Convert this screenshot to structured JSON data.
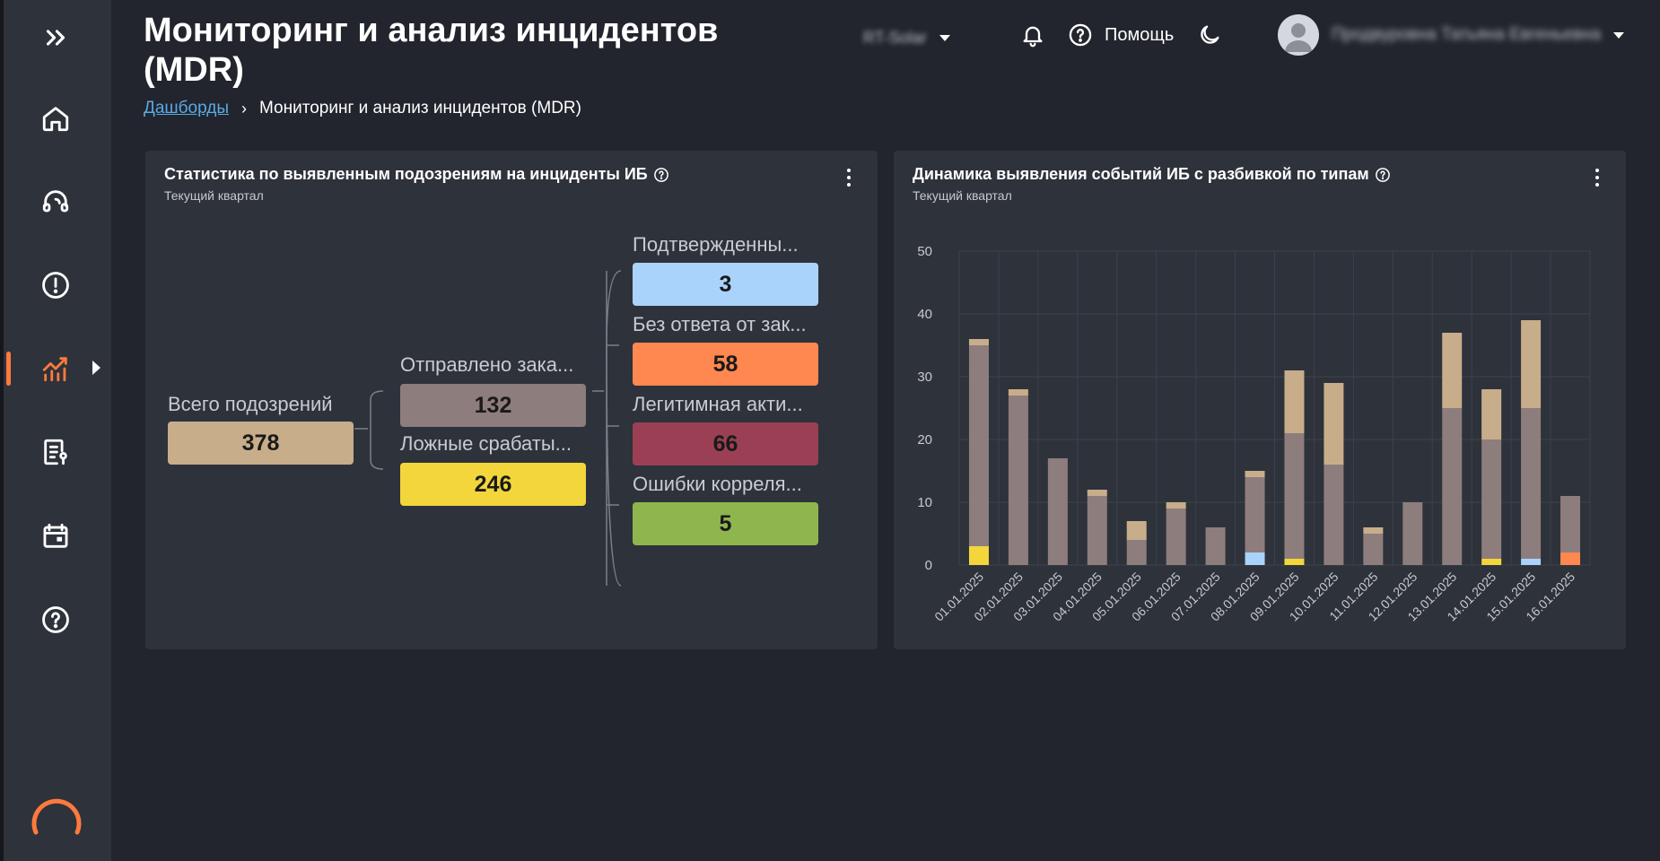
{
  "header": {
    "title": "Мониторинг и анализ инцидентов (MDR)",
    "org_selector": "RT-Solar",
    "help_label": "Помощь",
    "user_name": "Продвуровна Татьяна Евгеньевна"
  },
  "breadcrumb": {
    "root": "Дашборды",
    "current": "Мониторинг и анализ инцидентов (MDR)"
  },
  "sidebar": {
    "items": [
      {
        "name": "expand",
        "icon": "double-chevron-right-icon"
      },
      {
        "name": "home",
        "icon": "home-icon"
      },
      {
        "name": "support",
        "icon": "headset-icon"
      },
      {
        "name": "incidents",
        "icon": "alert-icon"
      },
      {
        "name": "analytics",
        "icon": "chart-icon",
        "active": true
      },
      {
        "name": "reports",
        "icon": "report-icon"
      },
      {
        "name": "calendar",
        "icon": "calendar-icon"
      },
      {
        "name": "help",
        "icon": "help-icon"
      }
    ],
    "accent": "#ff7a3d"
  },
  "left_panel": {
    "title": "Статистика по выявленным подозрениям на инциденты ИБ",
    "subtitle": "Текущий квартал",
    "tree": {
      "root": {
        "label": "Всего подозрений",
        "value": "378",
        "color": "#c8ad8a"
      },
      "level1": [
        {
          "label": "Отправлено зака...",
          "value": "132",
          "color": "#8e7d7d"
        },
        {
          "label": "Ложные срабаты...",
          "value": "246",
          "color": "#f3d63b"
        }
      ],
      "level2": [
        {
          "label": "Подтвержденны...",
          "value": "3",
          "color": "#a9d3fb"
        },
        {
          "label": "Без ответа от зак...",
          "value": "58",
          "color": "#ff8750"
        },
        {
          "label": "Легитимная акти...",
          "value": "66",
          "color": "#9b4054"
        },
        {
          "label": "Ошибки корреля...",
          "value": "5",
          "color": "#8fb54e"
        }
      ]
    }
  },
  "right_panel": {
    "title": "Динамика выявления событий ИБ с разбивкой по типам",
    "subtitle": "Текущий квартал"
  },
  "chart_data": {
    "type": "bar",
    "stacked": true,
    "categories": [
      "01.01.2025",
      "02.01.2025",
      "03.01.2025",
      "04.01.2025",
      "05.01.2025",
      "06.01.2025",
      "07.01.2025",
      "08.01.2025",
      "09.01.2025",
      "10.01.2025",
      "11.01.2025",
      "12.01.2025",
      "13.01.2025",
      "14.01.2025",
      "15.01.2025",
      "16.01.2025"
    ],
    "series": [
      {
        "color": "#f3d63b",
        "values": [
          3,
          0,
          0,
          0,
          0,
          0,
          0,
          0,
          1,
          0,
          0,
          0,
          0,
          1,
          0,
          0
        ]
      },
      {
        "color": "#a9d3fb",
        "values": [
          0,
          0,
          0,
          0,
          0,
          0,
          0,
          2,
          0,
          0,
          0,
          0,
          0,
          0,
          1,
          0
        ]
      },
      {
        "color": "#ff8750",
        "values": [
          0,
          0,
          0,
          0,
          0,
          0,
          0,
          0,
          0,
          0,
          0,
          0,
          0,
          0,
          0,
          2
        ]
      },
      {
        "color": "#8e7d7d",
        "values": [
          32,
          27,
          17,
          11,
          4,
          9,
          6,
          12,
          20,
          16,
          5,
          10,
          25,
          19,
          24,
          9
        ]
      },
      {
        "color": "#c8ad8a",
        "values": [
          1,
          1,
          0,
          1,
          3,
          1,
          0,
          1,
          10,
          13,
          1,
          0,
          12,
          8,
          14,
          0
        ]
      }
    ],
    "ylim": [
      0,
      50
    ],
    "yticks": [
      0,
      10,
      20,
      30,
      40,
      50
    ],
    "grid": true,
    "legend": "none"
  }
}
